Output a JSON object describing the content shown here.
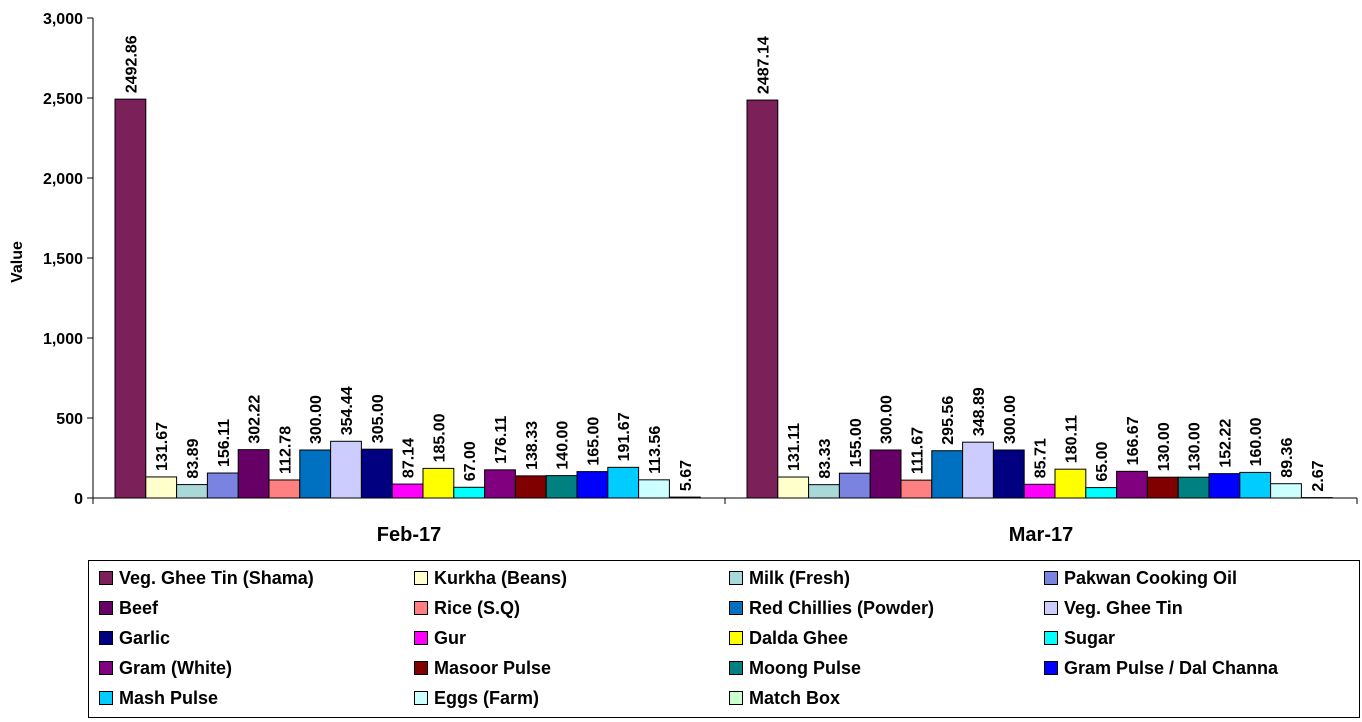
{
  "chart_data": {
    "type": "bar",
    "categories": [
      "Feb-17",
      "Mar-17"
    ],
    "ylabel": "Value",
    "xlabel": "",
    "ylim": [
      0,
      3000
    ],
    "yticks": [
      0,
      500,
      1000,
      1500,
      2000,
      2500,
      3000
    ],
    "ytick_labels": [
      "0",
      "500",
      "1,000",
      "1,500",
      "2,000",
      "2,500",
      "3,000"
    ],
    "grid": false,
    "legend_position": "bottom",
    "series": [
      {
        "name": "Veg. Ghee Tin (Shama)",
        "color": "#7B2059",
        "values": [
          2492.86,
          2487.14
        ],
        "labels": [
          "2492.86",
          "2487.14"
        ]
      },
      {
        "name": "Kurkha (Beans)",
        "color": "#FFFFCC",
        "values": [
          131.67,
          131.11
        ],
        "labels": [
          "131.67",
          "131.11"
        ]
      },
      {
        "name": "Milk (Fresh)",
        "color": "#A8D8D8",
        "values": [
          83.89,
          83.33
        ],
        "labels": [
          "83.89",
          "83.33"
        ]
      },
      {
        "name": "Pakwan Cooking Oil",
        "color": "#7B83E0",
        "values": [
          156.11,
          155.0
        ],
        "labels": [
          "156.11",
          "155.00"
        ]
      },
      {
        "name": "Beef",
        "color": "#660066",
        "values": [
          302.22,
          300.0
        ],
        "labels": [
          "302.22",
          "300.00"
        ]
      },
      {
        "name": "Rice (S.Q)",
        "color": "#FF8080",
        "values": [
          112.78,
          111.67
        ],
        "labels": [
          "112.78",
          "111.67"
        ]
      },
      {
        "name": "Red Chillies (Powder)",
        "color": "#0070C0",
        "values": [
          300.0,
          295.56
        ],
        "labels": [
          "300.00",
          "295.56"
        ]
      },
      {
        "name": "Veg. Ghee Tin",
        "color": "#CCCCFF",
        "values": [
          354.44,
          348.89
        ],
        "labels": [
          "354.44",
          "348.89"
        ]
      },
      {
        "name": "Garlic",
        "color": "#000080",
        "values": [
          305.0,
          300.0
        ],
        "labels": [
          "305.00",
          "300.00"
        ]
      },
      {
        "name": "Gur",
        "color": "#FF00FF",
        "values": [
          87.14,
          85.71
        ],
        "labels": [
          "87.14",
          "85.71"
        ]
      },
      {
        "name": "Dalda Ghee",
        "color": "#FFFF00",
        "values": [
          185.0,
          180.11
        ],
        "labels": [
          "185.00",
          "180.11"
        ]
      },
      {
        "name": "Sugar",
        "color": "#00FFFF",
        "values": [
          67.0,
          65.0
        ],
        "labels": [
          "67.00",
          "65.00"
        ]
      },
      {
        "name": "Gram (White)",
        "color": "#800080",
        "values": [
          176.11,
          166.67
        ],
        "labels": [
          "176.11",
          "166.67"
        ]
      },
      {
        "name": "Masoor Pulse",
        "color": "#800000",
        "values": [
          138.33,
          130.0
        ],
        "labels": [
          "138.33",
          "130.00"
        ]
      },
      {
        "name": "Moong Pulse",
        "color": "#008080",
        "values": [
          140.0,
          130.0
        ],
        "labels": [
          "140.00",
          "130.00"
        ]
      },
      {
        "name": "Gram Pulse / Dal Channa",
        "color": "#0000FF",
        "values": [
          165.0,
          152.22
        ],
        "labels": [
          "165.00",
          "152.22"
        ]
      },
      {
        "name": "Mash Pulse",
        "color": "#00CCFF",
        "values": [
          191.67,
          160.0
        ],
        "labels": [
          "191.67",
          "160.00"
        ]
      },
      {
        "name": "Eggs (Farm)",
        "color": "#CCFFFF",
        "values": [
          113.56,
          89.36
        ],
        "labels": [
          "113.56",
          "89.36"
        ]
      },
      {
        "name": "Match Box",
        "color": "#CCFFCC",
        "values": [
          5.67,
          2.67
        ],
        "labels": [
          "5.67",
          "2.67"
        ]
      }
    ]
  }
}
